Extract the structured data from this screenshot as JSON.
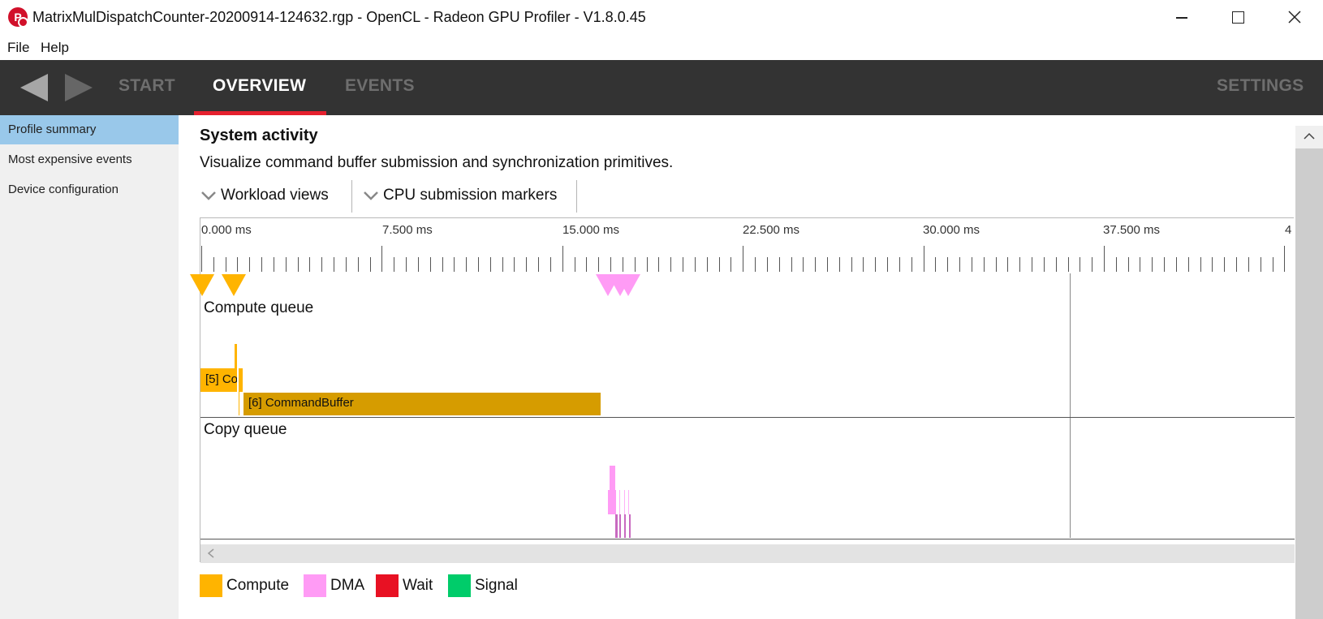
{
  "window": {
    "title": "MatrixMulDispatchCounter-20200914-124632.rgp - OpenCL - Radeon GPU Profiler - V1.8.0.45",
    "app_icon_letter": "P"
  },
  "menu": {
    "file": "File",
    "help": "Help"
  },
  "nav": {
    "tabs": [
      {
        "label": "START"
      },
      {
        "label": "OVERVIEW"
      },
      {
        "label": "EVENTS"
      }
    ],
    "settings": "SETTINGS",
    "accent_color": "#e5202e"
  },
  "sidebar": {
    "items": [
      {
        "label": "Profile summary",
        "selected": true
      },
      {
        "label": "Most expensive events"
      },
      {
        "label": "Device configuration"
      }
    ]
  },
  "main": {
    "title": "System activity",
    "description": "Visualize command buffer submission and synchronization primitives.",
    "dropdowns": [
      {
        "label": "Workload views"
      },
      {
        "label": "CPU submission markers"
      }
    ]
  },
  "timeline": {
    "ruler_labels": [
      "0.000 ms",
      "7.500 ms",
      "15.000 ms",
      "22.500 ms",
      "30.000 ms",
      "37.500 ms",
      "4"
    ],
    "queues": [
      {
        "name": "Compute queue",
        "blocks": [
          {
            "label": "[5] Co",
            "color": "#ffb400"
          },
          {
            "label": "[6] CommandBuffer",
            "color": "#d69c00"
          }
        ]
      },
      {
        "name": "Copy queue"
      }
    ]
  },
  "legend": [
    {
      "label": "Compute",
      "color": "#ffb400"
    },
    {
      "label": "DMA",
      "color": "#ff9bf5"
    },
    {
      "label": "Wait",
      "color": "#e81123"
    },
    {
      "label": "Signal",
      "color": "#00cc6a"
    }
  ]
}
